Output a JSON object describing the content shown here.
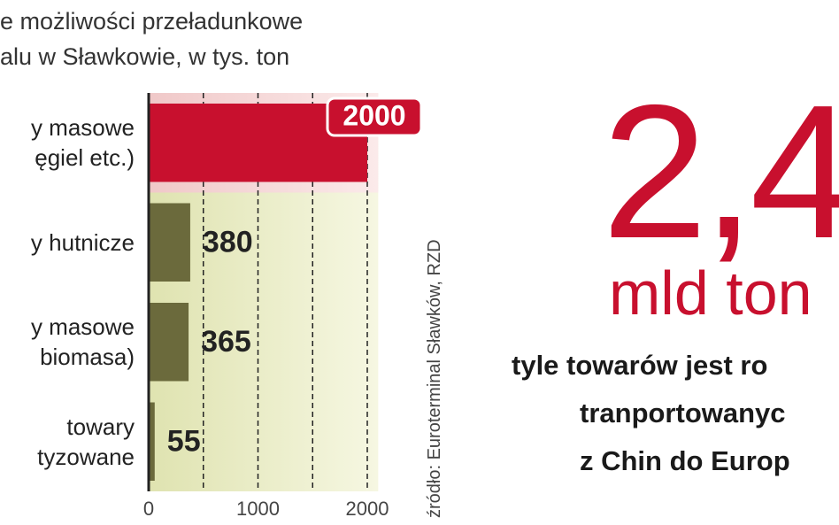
{
  "chart_data": {
    "type": "bar",
    "orientation": "horizontal",
    "title": "e możliwości przeładunkowe\nalu w Sławkowie, w tys. ton",
    "categories": [
      "y masowe\nęgiel etc.)",
      "y hutnicze",
      "y masowe\nbiomasa)",
      "towary\ntyzowane"
    ],
    "values": [
      2000,
      380,
      365,
      55
    ],
    "colors": [
      "#c8102e",
      "#6b6a3c",
      "#6b6a3c",
      "#6b6a3c"
    ],
    "highlight": 0,
    "xlim": [
      0,
      2100
    ],
    "xticks": [
      0,
      1000,
      2000
    ],
    "xgrid": [
      500,
      1000,
      1500,
      2000
    ],
    "source": "źródło: Euroterminal Sławków, RZD"
  },
  "callout": {
    "number": "2,4",
    "unit": "mld ton",
    "text": [
      "tyle towarów jest ro",
      "tranportowanyc",
      "z Chin do Europ"
    ]
  }
}
